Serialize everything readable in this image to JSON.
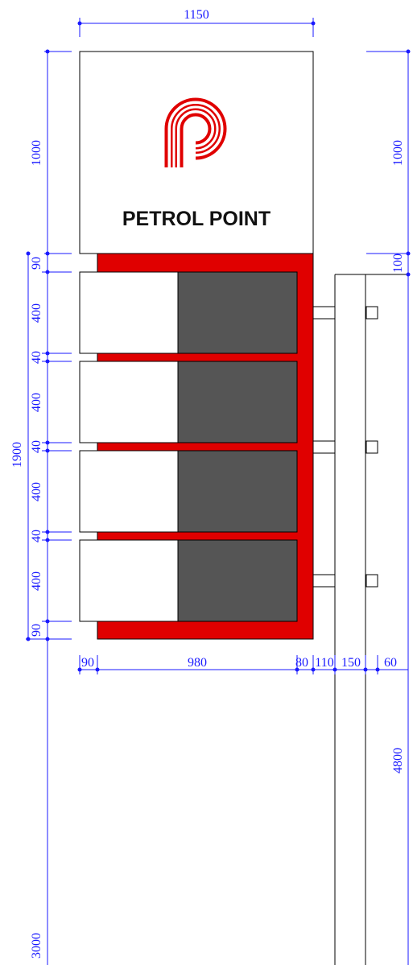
{
  "brand": {
    "name": "PETROL POINT"
  },
  "colors": {
    "red": "#e00000",
    "panel_dark": "#555555",
    "dimension": "#1a1aff"
  },
  "logo": {
    "icon": "petrol-point-p-logo"
  },
  "dimensions": {
    "top_width": "1150",
    "head_height_left": "1000",
    "head_height_right": "1000",
    "gap_right": "100",
    "frame_top": "90",
    "panel_height": "400",
    "panel_gap": "40",
    "frame_bottom": "90",
    "body_height": "1900",
    "bottom_left_margin": "90",
    "bottom_panel_width": "980",
    "bottom_right_margin": "80",
    "bottom_gap": "110",
    "post_width": "150",
    "post_flange": "60",
    "pole_height": "4800",
    "pole_height_left": "3000"
  }
}
